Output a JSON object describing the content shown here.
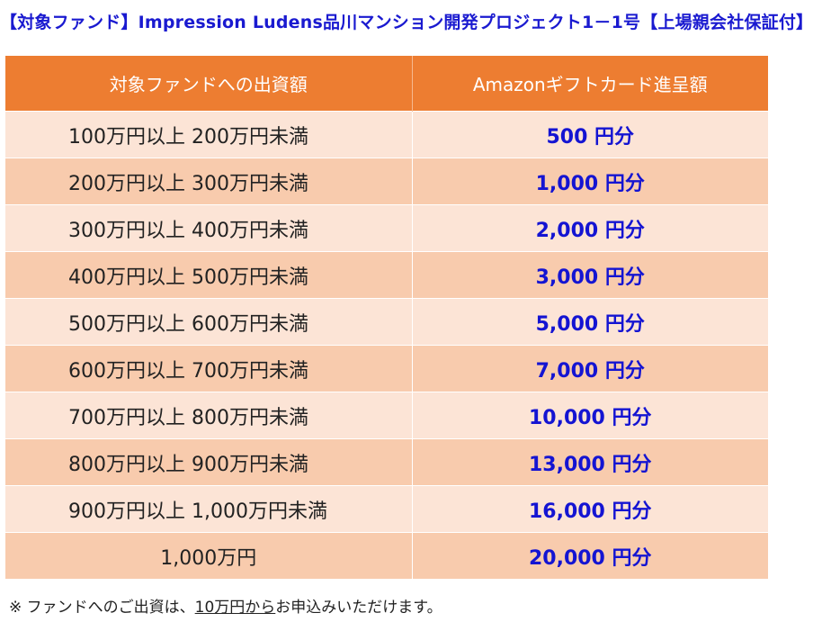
{
  "title": "【対象ファンド】Impression Ludens品川マンション開発プロジェクト1－1号【上場親会社保証付】",
  "table": {
    "headers": [
      "対象ファンドへの出資額",
      "Amazonギフトカード進呈額"
    ],
    "rows": [
      {
        "range": "100万円以上 200万円未満",
        "amount": "500 円分"
      },
      {
        "range": "200万円以上 300万円未満",
        "amount": "1,000 円分"
      },
      {
        "range": "300万円以上 400万円未満",
        "amount": "2,000 円分"
      },
      {
        "range": "400万円以上 500万円未満",
        "amount": "3,000 円分"
      },
      {
        "range": "500万円以上 600万円未満",
        "amount": "5,000 円分"
      },
      {
        "range": "600万円以上 700万円未満",
        "amount": "7,000 円分"
      },
      {
        "range": "700万円以上 800万円未満",
        "amount": "10,000 円分"
      },
      {
        "range": "800万円以上 900万円未満",
        "amount": "13,000 円分"
      },
      {
        "range": "900万円以上 1,000万円未満",
        "amount": "16,000 円分"
      },
      {
        "range": "1,000万円",
        "amount": "20,000 円分"
      }
    ]
  },
  "note": {
    "prefix": "※ ファンドへのご出資は、",
    "underlined": "10万円から",
    "suffix": "お申込みいただけます。"
  },
  "colors": {
    "title": "#1a1ad0",
    "header_bg": "#ed7d31",
    "row_light": "#fce4d6",
    "row_dark": "#f8cbad",
    "amount_text": "#1414d2"
  }
}
